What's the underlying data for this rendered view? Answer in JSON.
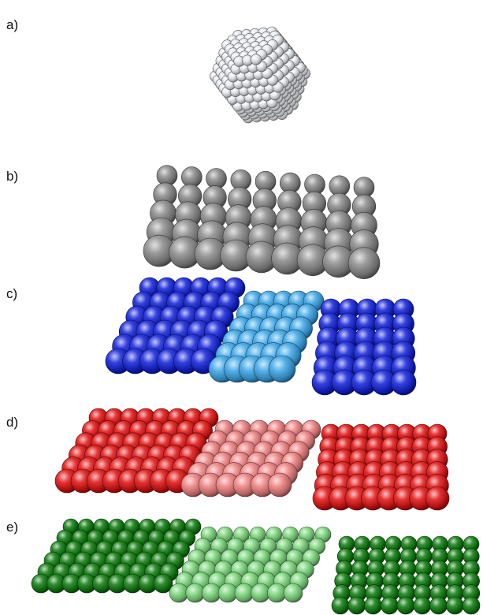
{
  "panels": [
    {
      "label": "a)",
      "structure": "nanoparticle",
      "colors": {
        "base": "#e8ebf0"
      }
    },
    {
      "label": "b)",
      "structure": "slab",
      "colors": {
        "base": "#8a8a8a"
      }
    },
    {
      "label": "c)",
      "structure": "slab-three-domains",
      "colors": {
        "outer": "#1020d8",
        "middle": "#3aa6e8"
      }
    },
    {
      "label": "d)",
      "structure": "slab-three-domains",
      "colors": {
        "outer": "#e01010",
        "middle": "#ee8080"
      }
    },
    {
      "label": "e)",
      "structure": "slab-three-domains",
      "colors": {
        "outer": "#0c7a0c",
        "middle": "#7ed87e"
      }
    }
  ]
}
